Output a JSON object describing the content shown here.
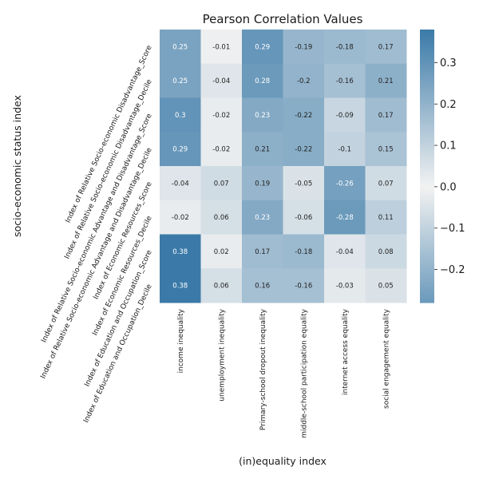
{
  "chart_data": {
    "type": "heatmap",
    "title": "Pearson Correlation Values",
    "xlabel": "(in)equality index",
    "ylabel": "socio-economic status index",
    "rows": [
      "Index of Relative Socio-economic Disadvantage_Score",
      "Index of Relative Socio-economic Disadvantage_Decile",
      "Index of Relative Socio-economic Advantage and Disadvantage_Score",
      "Index of Relative Socio-economic Advantage and Disadvantage_Decile",
      "Index of Economic Resources_Score",
      "Index of Economic Resources_Decile",
      "Index of Education and Occupation_Score",
      "Index of Education and Occupation_Decile"
    ],
    "columns": [
      "income inequality",
      "unemployment inequality",
      "Primary-school dropout inequality",
      "middle-school participation equality",
      "internet access equality",
      "social engagement equality"
    ],
    "values": [
      [
        0.25,
        -0.01,
        0.29,
        -0.19,
        -0.18,
        0.17
      ],
      [
        0.25,
        -0.04,
        0.28,
        -0.2,
        -0.16,
        0.21
      ],
      [
        0.3,
        -0.02,
        0.23,
        -0.22,
        -0.09,
        0.17
      ],
      [
        0.29,
        -0.02,
        0.21,
        -0.22,
        -0.1,
        0.15
      ],
      [
        -0.04,
        0.07,
        0.19,
        -0.05,
        -0.26,
        0.07
      ],
      [
        -0.02,
        0.06,
        0.23,
        -0.06,
        -0.28,
        0.11
      ],
      [
        0.38,
        0.02,
        0.17,
        -0.18,
        -0.04,
        0.08
      ],
      [
        0.38,
        0.06,
        0.16,
        -0.16,
        -0.03,
        0.05
      ]
    ],
    "colorbar": {
      "range": [
        -0.28,
        0.38
      ],
      "ticks": [
        "0.3",
        "0.2",
        "0.1",
        "0.0",
        "−0.1",
        "−0.2"
      ]
    },
    "colormap": "diverging, symmetric magnitude",
    "colors": {
      "strong": "#3b7aa8",
      "neutral": "#f2f2f2"
    }
  }
}
